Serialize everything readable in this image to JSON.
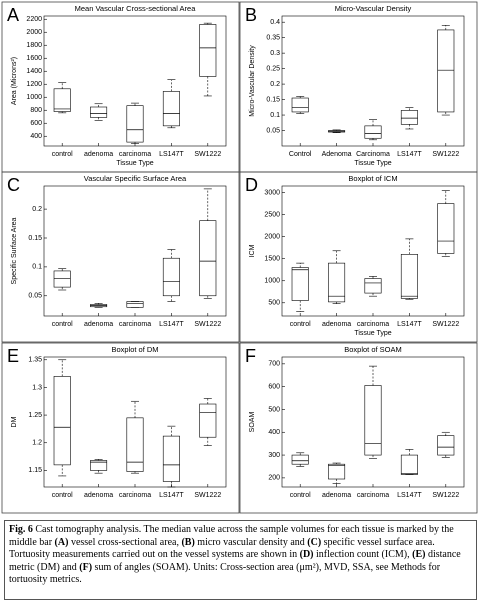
{
  "chart_data": [
    {
      "type": "box",
      "label": "A",
      "title": "Mean Vascular Cross-sectional Area",
      "ylabel": "Area (Microns²)",
      "xlabel": "Tissue Type",
      "categories": [
        "control",
        "adenoma",
        "carcinoma",
        "LS147T",
        "SW1222"
      ],
      "low": [
        760,
        640,
        290,
        530,
        1020
      ],
      "q1": [
        780,
        690,
        310,
        560,
        1320
      ],
      "median": [
        820,
        750,
        500,
        750,
        1760
      ],
      "q3": [
        1130,
        850,
        870,
        1090,
        2120
      ],
      "high": [
        1230,
        900,
        910,
        1270,
        2140
      ],
      "ylim": [
        250,
        2250
      ],
      "yticks": [
        400,
        600,
        800,
        1000,
        1200,
        1400,
        1600,
        1800,
        2000,
        2200
      ],
      "color": "#000000"
    },
    {
      "type": "box",
      "label": "B",
      "title": "Micro-Vascular Density",
      "ylabel": "Micro-Vascular Density",
      "xlabel": "Tissue Type",
      "categories": [
        "Control",
        "Adenoma",
        "Carcinoma",
        "LS147T",
        "SW1222"
      ],
      "low": [
        0.105,
        0.043,
        0.02,
        0.055,
        0.1
      ],
      "q1": [
        0.11,
        0.045,
        0.025,
        0.07,
        0.11
      ],
      "median": [
        0.125,
        0.048,
        0.04,
        0.09,
        0.245
      ],
      "q3": [
        0.155,
        0.05,
        0.065,
        0.115,
        0.375
      ],
      "high": [
        0.16,
        0.052,
        0.085,
        0.125,
        0.39
      ],
      "ylim": [
        0,
        0.42
      ],
      "yticks": [
        0.05,
        0.1,
        0.15,
        0.2,
        0.25,
        0.3,
        0.35,
        0.4
      ],
      "color": "#000000"
    },
    {
      "type": "box",
      "label": "C",
      "title": "Vascular Specific Surface Area",
      "ylabel": "Specific Surface Area",
      "categories": [
        "control",
        "adenoma",
        "carcinoma",
        "LS147T",
        "SW1222"
      ],
      "low": [
        0.06,
        0.03,
        0.03,
        0.04,
        0.045
      ],
      "q1": [
        0.065,
        0.031,
        0.03,
        0.05,
        0.05
      ],
      "median": [
        0.08,
        0.033,
        0.037,
        0.075,
        0.11
      ],
      "q3": [
        0.093,
        0.035,
        0.04,
        0.115,
        0.18
      ],
      "high": [
        0.097,
        0.037,
        0.04,
        0.13,
        0.235
      ],
      "ylim": [
        0.015,
        0.24
      ],
      "yticks": [
        0.05,
        0.1,
        0.15,
        0.2
      ],
      "color": "#000000"
    },
    {
      "type": "box",
      "label": "D",
      "title": "Boxplot of ICM",
      "ylabel": "ICM",
      "xlabel": "Tissue Type",
      "categories": [
        "control",
        "adenoma",
        "carcinoma",
        "LS147T",
        "SW1222"
      ],
      "low": [
        300,
        480,
        650,
        580,
        1550
      ],
      "q1": [
        550,
        520,
        720,
        600,
        1620
      ],
      "median": [
        1250,
        650,
        950,
        650,
        1900
      ],
      "q3": [
        1300,
        1400,
        1050,
        1600,
        2750
      ],
      "high": [
        1400,
        1680,
        1100,
        1950,
        3050
      ],
      "ylim": [
        200,
        3150
      ],
      "yticks": [
        500,
        1000,
        1500,
        2000,
        2500,
        3000
      ],
      "color": "#000000"
    },
    {
      "type": "box",
      "label": "E",
      "title": "Boxplot of DM",
      "ylabel": "DM",
      "categories": [
        "control",
        "adenoma",
        "carcinoma",
        "LS147T",
        "SW1222"
      ],
      "low": [
        1.14,
        1.145,
        1.145,
        1.12,
        1.195
      ],
      "q1": [
        1.16,
        1.15,
        1.148,
        1.13,
        1.21
      ],
      "median": [
        1.228,
        1.165,
        1.165,
        1.16,
        1.255
      ],
      "q3": [
        1.32,
        1.168,
        1.245,
        1.212,
        1.27
      ],
      "high": [
        1.35,
        1.17,
        1.275,
        1.23,
        1.28
      ],
      "ylim": [
        1.12,
        1.355
      ],
      "yticks": [
        1.15,
        1.2,
        1.25,
        1.3,
        1.35
      ],
      "color": "#000000"
    },
    {
      "type": "box",
      "label": "F",
      "title": "Boxplot of SOAM",
      "ylabel": "SOAM",
      "categories": [
        "control",
        "adenoma",
        "carcinoma",
        "LS147T",
        "SW1222"
      ],
      "low": [
        250,
        175,
        285,
        215,
        290
      ],
      "q1": [
        260,
        195,
        300,
        215,
        300
      ],
      "median": [
        275,
        255,
        350,
        218,
        335
      ],
      "q3": [
        300,
        260,
        605,
        300,
        385
      ],
      "high": [
        310,
        265,
        690,
        325,
        400
      ],
      "ylim": [
        160,
        730
      ],
      "yticks": [
        200,
        300,
        400,
        500,
        600,
        700
      ],
      "color": "#000000"
    }
  ],
  "caption": [
    {
      "text": "Fig. 6",
      "bold": true
    },
    {
      "text": " Cast tomography analysis. The median value across the sample volumes for each tissue is marked by the middle bar ",
      "bold": false
    },
    {
      "text": "(A)",
      "bold": true
    },
    {
      "text": " vessel cross-sectional area, ",
      "bold": false
    },
    {
      "text": "(B)",
      "bold": true
    },
    {
      "text": " micro vascular density and ",
      "bold": false
    },
    {
      "text": "(C)",
      "bold": true
    },
    {
      "text": " specific vessel surface area. Tortuosity measurements carried out on the vessel systems are shown in ",
      "bold": false
    },
    {
      "text": "(D)",
      "bold": true
    },
    {
      "text": " inflection count (ICM), ",
      "bold": false
    },
    {
      "text": "(E)",
      "bold": true
    },
    {
      "text": " distance metric (DM) and ",
      "bold": false
    },
    {
      "text": "(F)",
      "bold": true
    },
    {
      "text": " sum of angles (SOAM). Units: Cross-section area (μm²), MVD, SSA, see Methods for tortuosity metrics.",
      "bold": false
    }
  ]
}
